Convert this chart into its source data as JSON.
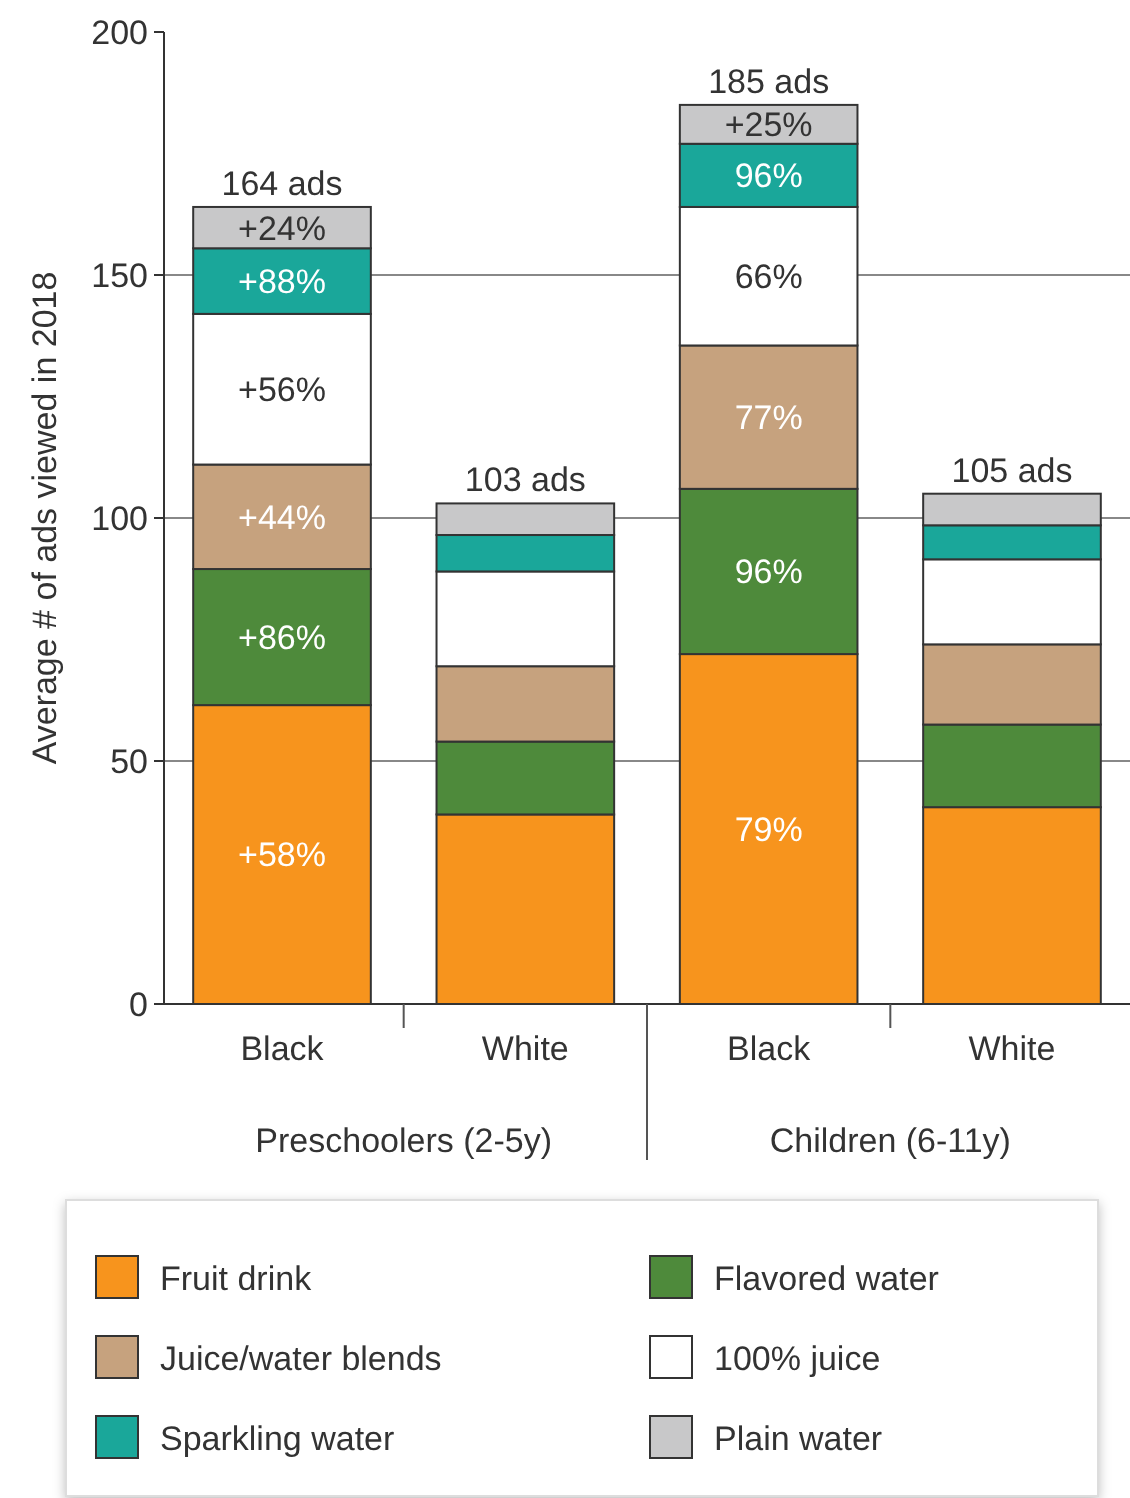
{
  "chart_data": {
    "type": "bar",
    "stacked": true,
    "ylabel": "Average # of ads viewed in 2018",
    "categories": [
      "Black",
      "White",
      "Black",
      "White"
    ],
    "series": [
      {
        "name": "Fruit drink",
        "color": "#f7941d",
        "values": [
          61.5,
          39,
          72,
          40.5
        ]
      },
      {
        "name": "Flavored water",
        "color": "#4e8a3b",
        "values": [
          28,
          15,
          34,
          17
        ]
      },
      {
        "name": "Juice/water blends",
        "color": "#c6a27e",
        "values": [
          21.5,
          15.5,
          29.5,
          16.5
        ]
      },
      {
        "name": "100% juice",
        "color": "#ffffff",
        "values": [
          31,
          19.5,
          28.5,
          17.5
        ]
      },
      {
        "name": "Sparkling water",
        "color": "#1aa79a",
        "values": [
          13.5,
          7.5,
          13,
          7
        ]
      },
      {
        "name": "Plain water",
        "color": "#c8c8c9",
        "values": [
          8.5,
          6.5,
          8,
          6.5
        ]
      }
    ],
    "totals": [
      "164 ads",
      "103 ads",
      "185 ads",
      "105 ads"
    ],
    "annotations": [
      "Preschoolers (2-5y)",
      "Children (6-11y)",
      "+58%",
      "+86%",
      "+44%",
      "+56%",
      "+88%",
      "+24%",
      "79%",
      "96%",
      "77%",
      "66%",
      "96%",
      "+25%"
    ],
    "ylim": [
      0,
      200
    ],
    "yticks": [
      0,
      50,
      100,
      150,
      200
    ],
    "grid": "y",
    "legend": "bottom"
  }
}
